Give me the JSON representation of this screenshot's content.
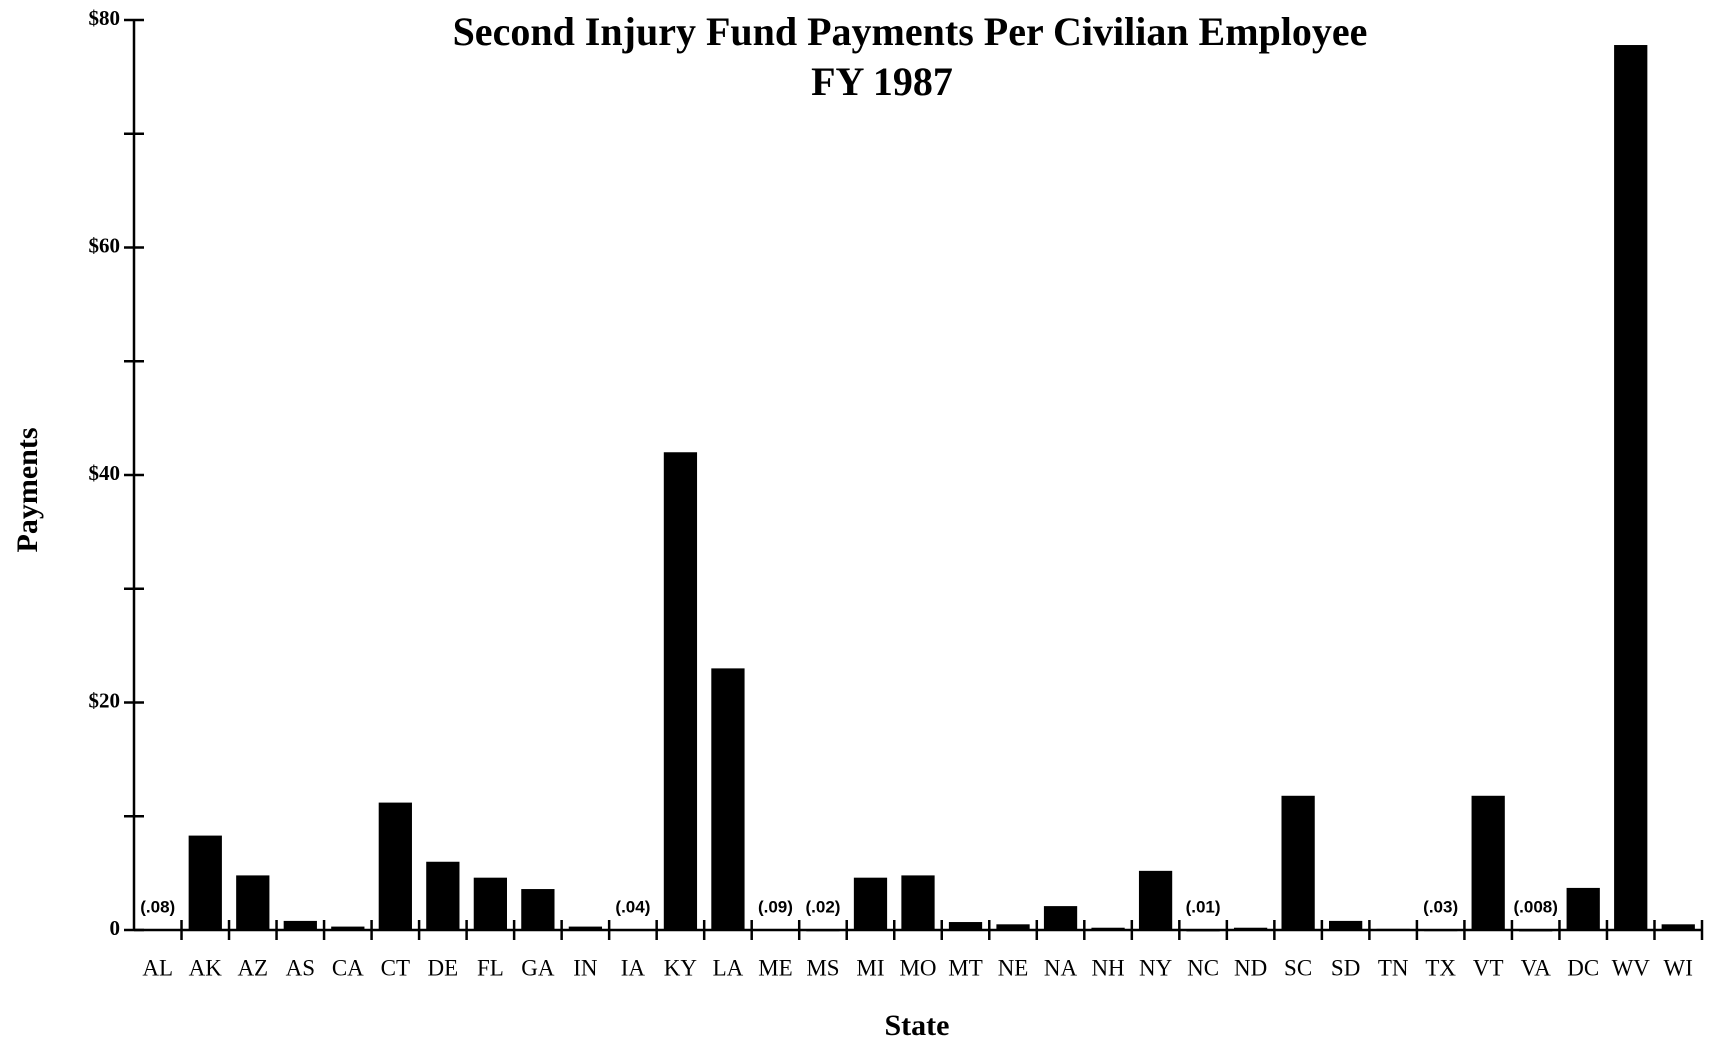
{
  "chart_data": {
    "type": "bar",
    "title": "Second Injury Fund Payments Per Civilian Employee",
    "subtitle": "FY 1987",
    "x_label": "State",
    "y_label": "Payments",
    "categories": [
      "AL",
      "AK",
      "AZ",
      "AS",
      "CA",
      "CT",
      "DE",
      "FL",
      "GA",
      "IN",
      "IA",
      "KY",
      "LA",
      "ME",
      "MS",
      "MI",
      "MO",
      "MT",
      "NE",
      "NA",
      "NH",
      "NY",
      "NC",
      "ND",
      "SC",
      "SD",
      "TN",
      "TX",
      "VT",
      "VA",
      "DC",
      "WV",
      "WI"
    ],
    "values": [
      0.08,
      8.3,
      4.8,
      0.8,
      0.3,
      11.2,
      6,
      4.6,
      3.6,
      0.3,
      0.04,
      42,
      23,
      0.09,
      0.02,
      4.6,
      4.8,
      0.7,
      0.5,
      2.1,
      0.2,
      5.2,
      0.01,
      0.2,
      11.8,
      0.8,
      0.1,
      0.03,
      11.8,
      0.008,
      3.7,
      77.8,
      0.5
    ],
    "value_labels": [
      "(.08)",
      null,
      null,
      null,
      null,
      null,
      null,
      null,
      null,
      null,
      "(.04)",
      null,
      null,
      "(.09)",
      "(.02)",
      null,
      null,
      null,
      null,
      null,
      null,
      null,
      "(.01)",
      null,
      null,
      null,
      null,
      "(.03)",
      null,
      "(.008)",
      null,
      null,
      null
    ],
    "color": "#000000",
    "ylim": [
      0,
      80
    ],
    "yticks": [
      0,
      {
        "value": 20,
        "label": "$20"
      },
      {
        "value": 40,
        "label": "$40"
      },
      {
        "value": 60,
        "label": "$60"
      },
      {
        "value": 80,
        "label": "$80"
      }
    ],
    "yminor_ticks": [
      10,
      30,
      50,
      70
    ],
    "grid": false
  }
}
